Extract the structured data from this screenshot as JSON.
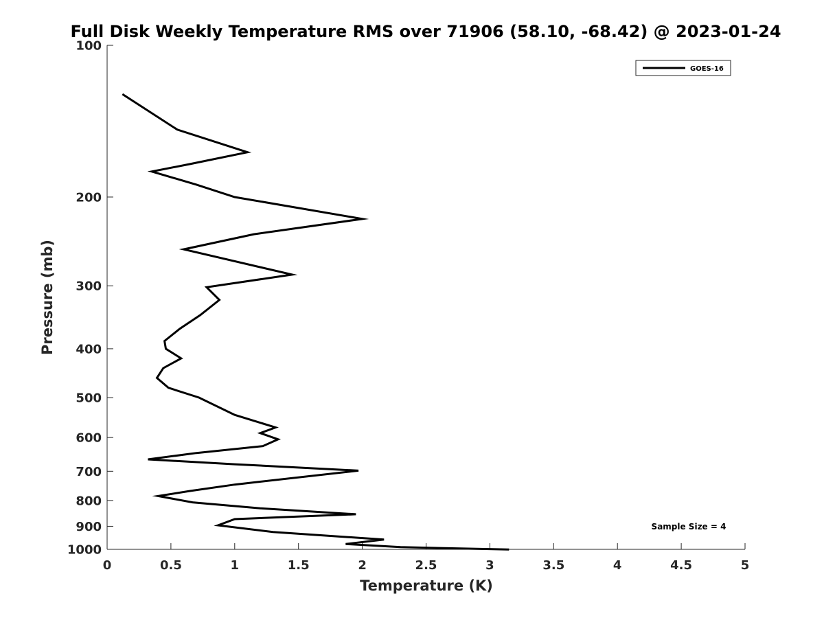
{
  "chart_data": {
    "type": "line",
    "title": "Full Disk Weekly Temperature RMS over 71906 (58.10, -68.42) @ 2023-01-24",
    "xlabel": "Temperature (K)",
    "ylabel": "Pressure (mb)",
    "xlim": [
      0,
      5
    ],
    "ylim": [
      100,
      1000
    ],
    "yscale": "log",
    "y_reversed": true,
    "grid": false,
    "legend_position": "top-right",
    "x_ticks": [
      "0",
      "0.5",
      "1",
      "1.5",
      "2",
      "2.5",
      "3",
      "3.5",
      "4",
      "4.5",
      "5"
    ],
    "y_ticks": [
      "100",
      "200",
      "300",
      "400",
      "500",
      "600",
      "700",
      "800",
      "900",
      "1000"
    ],
    "annotation": "Sample Size = 4",
    "series": [
      {
        "name": "GOES-16",
        "color": "#000000",
        "points": [
          [
            0.12,
            125
          ],
          [
            0.55,
            147
          ],
          [
            1.1,
            163
          ],
          [
            0.65,
            172
          ],
          [
            0.35,
            178
          ],
          [
            0.7,
            189
          ],
          [
            1.0,
            200
          ],
          [
            2.0,
            221
          ],
          [
            1.15,
            237
          ],
          [
            0.6,
            254
          ],
          [
            1.45,
            285
          ],
          [
            0.78,
            302
          ],
          [
            0.88,
            320
          ],
          [
            0.73,
            343
          ],
          [
            0.57,
            365
          ],
          [
            0.45,
            386
          ],
          [
            0.46,
            400
          ],
          [
            0.58,
            418
          ],
          [
            0.44,
            437
          ],
          [
            0.39,
            457
          ],
          [
            0.48,
            478
          ],
          [
            0.72,
            500
          ],
          [
            1.0,
            541
          ],
          [
            1.32,
            573
          ],
          [
            1.2,
            588
          ],
          [
            1.34,
            605
          ],
          [
            1.22,
            624
          ],
          [
            0.7,
            644
          ],
          [
            0.32,
            663
          ],
          [
            1.0,
            678
          ],
          [
            1.97,
            698
          ],
          [
            1.0,
            744
          ],
          [
            0.65,
            766
          ],
          [
            0.4,
            784
          ],
          [
            0.67,
            807
          ],
          [
            1.2,
            829
          ],
          [
            1.95,
            852
          ],
          [
            1.0,
            871
          ],
          [
            0.87,
            896
          ],
          [
            1.3,
            924
          ],
          [
            2.17,
            956
          ],
          [
            1.87,
            976
          ],
          [
            2.3,
            990
          ],
          [
            3.15,
            1001
          ]
        ]
      }
    ]
  }
}
